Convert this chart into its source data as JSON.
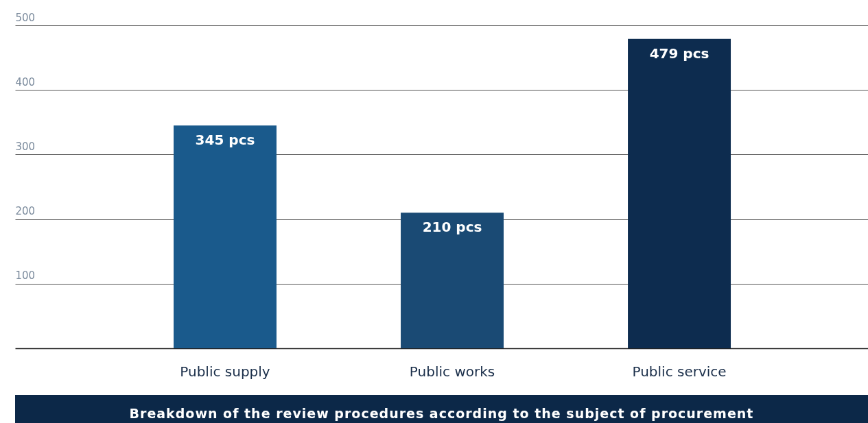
{
  "chart_data": {
    "type": "bar",
    "title": "Breakdown of the review procedures according to the subject of procurement",
    "categories": [
      "Public supply",
      "Public works",
      "Public service"
    ],
    "values": [
      345,
      210,
      479
    ],
    "colors": [
      "#1a5a8c",
      "#1a4a74",
      "#0d2c4f"
    ],
    "value_labels": [
      "345 pcs",
      "210 pcs",
      "479 pcs"
    ],
    "ylim": [
      0,
      500
    ],
    "yticks": [
      100,
      200,
      300,
      400,
      500
    ],
    "grid": "y"
  }
}
